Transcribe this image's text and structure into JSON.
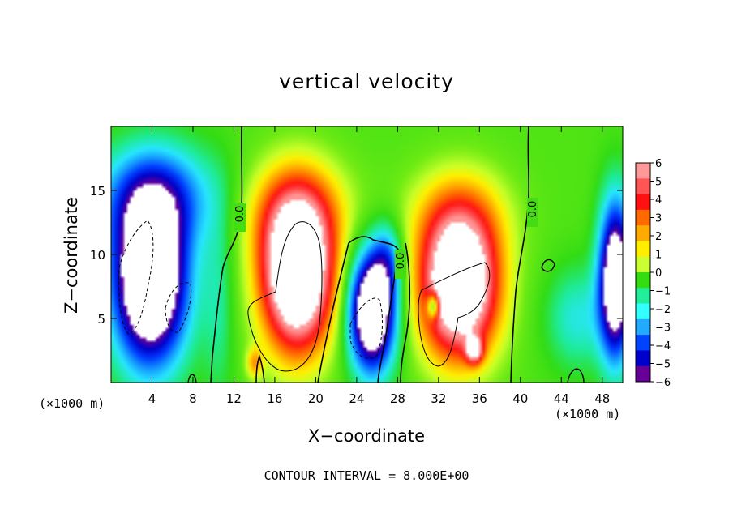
{
  "chart_data": {
    "type": "heatmap",
    "title": "vertical velocity",
    "xlabel": "X−coordinate",
    "ylabel": "Z−coordinate",
    "x_unit_left": "(×1000 m)",
    "x_unit_right": "(×1000 m)",
    "footer": "CONTOUR INTERVAL = 8.000E+00",
    "xlim": [
      0,
      50
    ],
    "ylim": [
      0,
      20
    ],
    "x_ticks": [
      4,
      8,
      12,
      16,
      20,
      24,
      28,
      32,
      36,
      40,
      44,
      48
    ],
    "y_ticks": [
      5,
      10,
      15
    ],
    "contour_labels": [
      "0.0",
      "0.0",
      "0.0"
    ],
    "colorbar": {
      "min": -6,
      "max": 6,
      "ticks": [
        "6",
        "5",
        "4",
        "3",
        "2",
        "1",
        "0",
        "−1",
        "−2",
        "−3",
        "−4",
        "−5",
        "−6"
      ],
      "colors": [
        "#ff9999",
        "#ff5555",
        "#ff1111",
        "#ff6a00",
        "#ffaa00",
        "#ffee00",
        "#ccff33",
        "#33dd11",
        "#22ee99",
        "#33ffff",
        "#22aaff",
        "#0044ff",
        "#0000cc",
        "#660099"
      ]
    },
    "updrafts": [
      {
        "x": 18.0,
        "z": 7.5,
        "peak": 8.0
      },
      {
        "x": 34.0,
        "z": 7.0,
        "peak": 8.0
      }
    ],
    "downdrafts": [
      {
        "x": 3.5,
        "z": 7.0,
        "peak": -8.0
      },
      {
        "x": 25.5,
        "z": 5.0,
        "peak": -8.0
      },
      {
        "x": 49.0,
        "z": 7.0,
        "peak": -7.0
      }
    ]
  }
}
